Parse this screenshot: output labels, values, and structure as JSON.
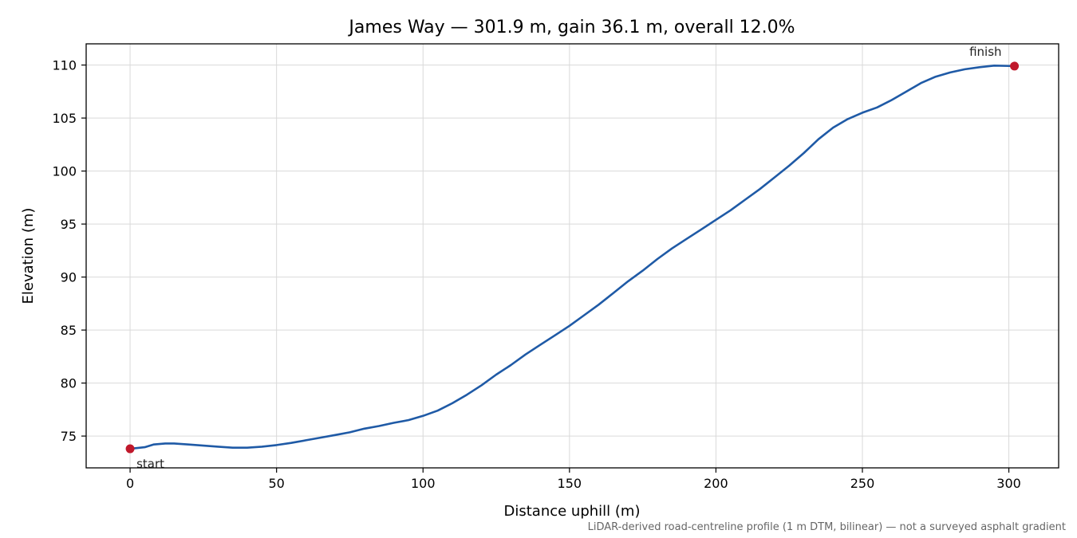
{
  "chart_data": {
    "type": "line",
    "title": "James Way — 301.9 m, gain 36.1 m, overall 12.0%",
    "xlabel": "Distance uphill (m)",
    "ylabel": "Elevation (m)",
    "xlim": [
      -15,
      317
    ],
    "ylim": [
      72,
      112
    ],
    "xticks": [
      0,
      50,
      100,
      150,
      200,
      250,
      300
    ],
    "yticks": [
      75,
      80,
      85,
      90,
      95,
      100,
      105,
      110
    ],
    "grid": true,
    "series": [
      {
        "color": "#1f5aa6",
        "x": [
          0,
          5,
          8,
          12,
          15,
          20,
          25,
          30,
          35,
          40,
          45,
          50,
          55,
          60,
          65,
          70,
          75,
          80,
          85,
          90,
          95,
          100,
          105,
          110,
          115,
          120,
          125,
          130,
          135,
          140,
          145,
          150,
          155,
          160,
          165,
          170,
          175,
          180,
          185,
          190,
          195,
          200,
          205,
          210,
          215,
          220,
          225,
          230,
          235,
          240,
          245,
          250,
          255,
          260,
          265,
          270,
          275,
          280,
          285,
          290,
          295,
          301.9
        ],
        "y": [
          73.8,
          73.95,
          74.2,
          74.3,
          74.3,
          74.2,
          74.1,
          74.0,
          73.9,
          73.9,
          74.0,
          74.15,
          74.35,
          74.6,
          74.85,
          75.1,
          75.35,
          75.7,
          75.95,
          76.25,
          76.5,
          76.9,
          77.4,
          78.1,
          78.9,
          79.8,
          80.8,
          81.7,
          82.7,
          83.6,
          84.5,
          85.4,
          86.4,
          87.4,
          88.5,
          89.6,
          90.6,
          91.7,
          92.7,
          93.6,
          94.5,
          95.4,
          96.3,
          97.3,
          98.3,
          99.4,
          100.5,
          101.7,
          103.0,
          104.1,
          104.9,
          105.5,
          106.0,
          106.7,
          107.5,
          108.3,
          108.9,
          109.3,
          109.6,
          109.8,
          109.95,
          109.9
        ]
      }
    ],
    "markers": [
      {
        "label": "start",
        "x": 0,
        "y": 73.8,
        "color": "#c0182b"
      },
      {
        "label": "finish",
        "x": 301.9,
        "y": 109.9,
        "color": "#c0182b"
      }
    ],
    "footnote": "LiDAR-derived road-centreline profile (1 m DTM, bilinear) — not a surveyed asphalt gradient"
  }
}
